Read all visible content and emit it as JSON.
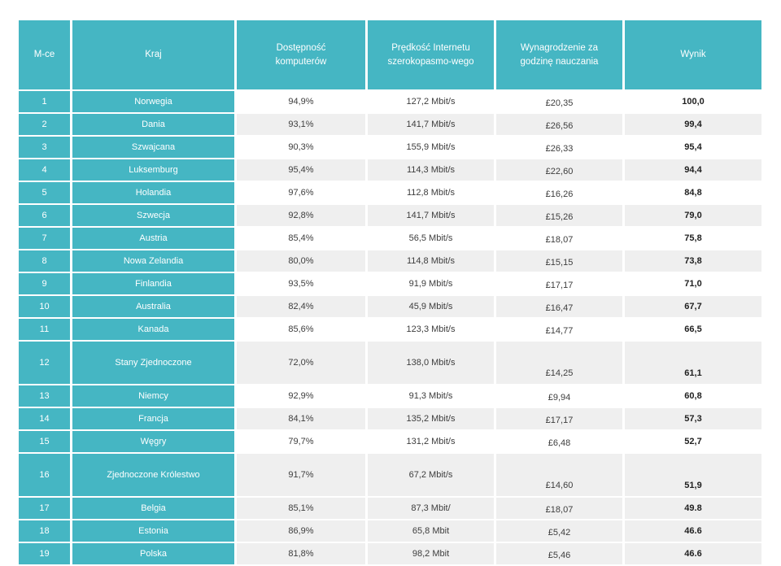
{
  "chart_data": {
    "type": "table",
    "title": "",
    "columns": [
      "M-ce",
      "Kraj",
      "Dostępność komputerów",
      "Prędkość Internetu szerokopasmo-wego",
      "Wynagrodzenie za godzinę nauczania",
      "Wynik"
    ],
    "rows": [
      [
        "1",
        "Norwegia",
        "94,9%",
        "127,2 Mbit/s",
        "£20,35",
        "100,0"
      ],
      [
        "2",
        "Dania",
        "93,1%",
        "141,7 Mbit/s",
        "£26,56",
        "99,4"
      ],
      [
        "3",
        "Szwajcana",
        "90,3%",
        "155,9 Mbit/s",
        "£26,33",
        "95,4"
      ],
      [
        "4",
        "Luksemburg",
        "95,4%",
        "114,3 Mbit/s",
        "£22,60",
        "94,4"
      ],
      [
        "5",
        "Holandia",
        "97,6%",
        "112,8 Mbit/s",
        "£16,26",
        "84,8"
      ],
      [
        "6",
        "Szwecja",
        "92,8%",
        "141,7 Mbit/s",
        "£15,26",
        "79,0"
      ],
      [
        "7",
        "Austria",
        "85,4%",
        "56,5 Mbit/s",
        "£18,07",
        "75,8"
      ],
      [
        "8",
        "Nowa Zelandia",
        "80,0%",
        "114,8 Mbit/s",
        "£15,15",
        "73,8"
      ],
      [
        "9",
        "Finlandia",
        "93,5%",
        "91,9 Mbit/s",
        "£17,17",
        "71,0"
      ],
      [
        "10",
        "Australia",
        "82,4%",
        "45,9 Mbit/s",
        "£16,47",
        "67,7"
      ],
      [
        "11",
        "Kanada",
        "85,6%",
        "123,3 Mbit/s",
        "£14,77",
        "66,5"
      ],
      [
        "12",
        "Stany Zjednoczone",
        "72,0%",
        "138,0 Mbit/s",
        "£14,25",
        "61,1"
      ],
      [
        "13",
        "Niemcy",
        "92,9%",
        "91,3 Mbit/s",
        "£9,94",
        "60,8"
      ],
      [
        "14",
        "Francja",
        "84,1%",
        "135,2 Mbit/s",
        "£17,17",
        "57,3"
      ],
      [
        "15",
        "Węgry",
        "79,7%",
        "131,2 Mbit/s",
        "£6,48",
        "52,7"
      ],
      [
        "16",
        "Zjednoczone Królestwo",
        "91,7%",
        "67,2 Mbit/s",
        "£14,60",
        "51,9"
      ],
      [
        "17",
        "Belgia",
        "85,1%",
        "87,3 Mbit/",
        "£18,07",
        "49.8"
      ],
      [
        "18",
        "Estonia",
        "86,9%",
        "65,8 Mbit",
        "£5,42",
        "46.6"
      ],
      [
        "19",
        "Polska",
        "81,8%",
        "98,2 Mbit",
        "£5,46",
        "46.6"
      ]
    ],
    "tall_row_indices": [
      11,
      15
    ],
    "gray_row_indices": [
      1,
      3,
      5,
      7,
      9,
      11,
      13,
      15,
      16,
      17,
      18
    ],
    "layout": {
      "grid": "off",
      "legend": "none"
    },
    "colors": {
      "header_teal": "#45b6c3",
      "row_alt_gray": "#efefef",
      "grid_gap_white": "#ffffff",
      "body_text": "#3d3d3d",
      "score_text": "#1f1f1f",
      "header_text": "#ffffff"
    }
  }
}
